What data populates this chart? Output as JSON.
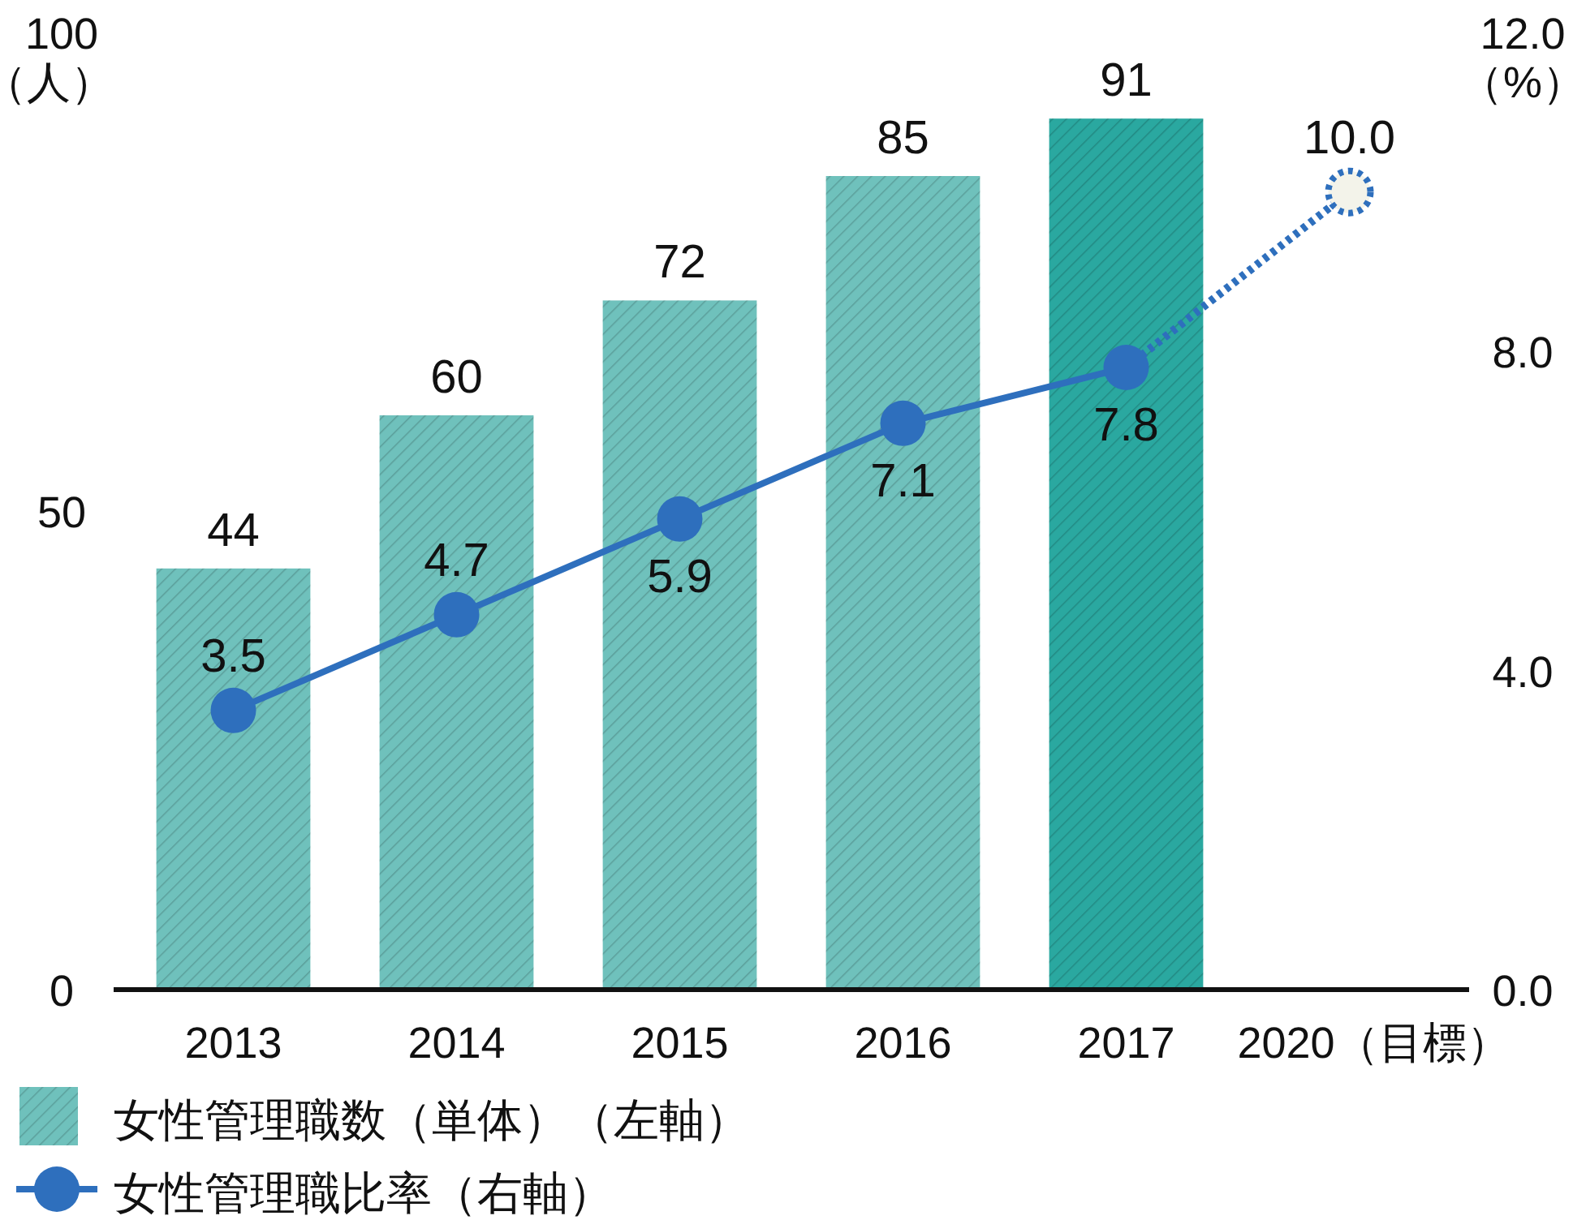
{
  "chart_data": {
    "type": "bar",
    "categories": [
      "2013",
      "2014",
      "2015",
      "2016",
      "2017",
      "2020（目標）"
    ],
    "ylabel": "（人）",
    "y2label": "（%）",
    "ylim": [
      0,
      100
    ],
    "yticks": [
      0,
      50,
      100
    ],
    "y2lim": [
      0,
      12
    ],
    "y2ticks": [
      {
        "value": 0,
        "label": "0.0"
      },
      {
        "value": 4,
        "label": "4.0"
      },
      {
        "value": 8,
        "label": "8.0"
      },
      {
        "value": 12,
        "label": "12.0"
      }
    ],
    "series": [
      {
        "name": "女性管理職数（単体）（左軸）",
        "color": "#6fc1bc",
        "colors": [
          "#6fc1bc",
          "#6fc1bc",
          "#6fc1bc",
          "#6fc1bc",
          "#2aa8a0",
          null
        ],
        "values": [
          44,
          60,
          72,
          85,
          91,
          null
        ]
      },
      {
        "type": "line",
        "axis": "y2",
        "color": "#2e6fbd",
        "line_style": "dotted",
        "marker": "circle",
        "values": [
          null,
          null,
          null,
          null,
          7.8,
          10.0
        ],
        "value_labels": [
          null,
          null,
          null,
          null,
          null,
          "10.0"
        ]
      },
      {
        "name": "女性管理職比率（右軸）",
        "type": "line",
        "axis": "y2",
        "color": "#2e6fbd",
        "line_style": "solid",
        "marker": "circle",
        "values": [
          3.5,
          4.7,
          5.9,
          7.1,
          7.8,
          null
        ]
      }
    ],
    "data_labels": true,
    "grid": false,
    "legend": "bottom left"
  }
}
